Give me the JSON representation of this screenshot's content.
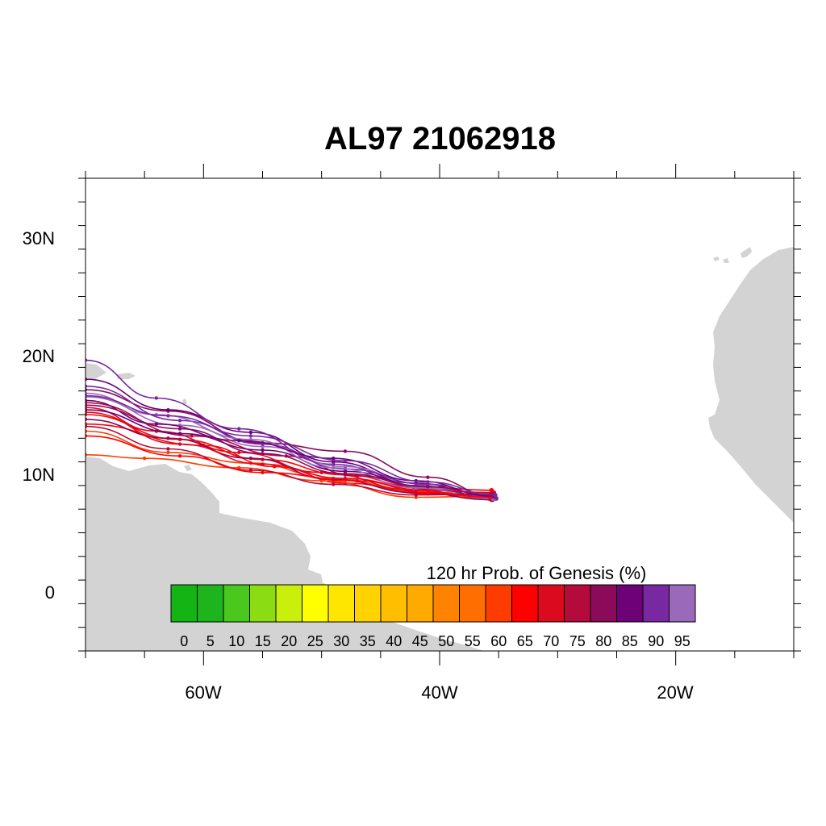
{
  "title": "AL97 21062918",
  "map": {
    "lon_range": [
      -70,
      -10
    ],
    "lat_range": [
      -5,
      35
    ],
    "x_ticks": [
      {
        "value": -60,
        "label": "60W"
      },
      {
        "value": -40,
        "label": "40W"
      },
      {
        "value": -20,
        "label": "20W"
      }
    ],
    "y_ticks": [
      {
        "value": 30,
        "label": "30N"
      },
      {
        "value": 20,
        "label": "20N"
      },
      {
        "value": 10,
        "label": "10N"
      },
      {
        "value": 0,
        "label": "0"
      }
    ],
    "land_color": "#d3d3d3",
    "background": "#ffffff"
  },
  "colorbar": {
    "title": "120 hr Prob. of Genesis (%)",
    "labels": [
      "0",
      "5",
      "10",
      "15",
      "20",
      "25",
      "30",
      "35",
      "40",
      "45",
      "50",
      "55",
      "60",
      "65",
      "70",
      "75",
      "80",
      "85",
      "90",
      "95"
    ],
    "colors": [
      "#15b415",
      "#1eb41e",
      "#4bc81e",
      "#8cdc14",
      "#c8f00a",
      "#ffff00",
      "#ffe600",
      "#ffd200",
      "#ffbe00",
      "#ffaa00",
      "#ff8200",
      "#ff6e00",
      "#ff3c00",
      "#ff0000",
      "#dc0a1e",
      "#b40a3c",
      "#8c0a5a",
      "#6e0078",
      "#7828a0",
      "#9b69b9"
    ]
  },
  "tracks": {
    "colors": [
      "#ff0000",
      "#ff3c00",
      "#dc0a1e",
      "#b40a3c",
      "#8c0a5a",
      "#6e0078",
      "#7828a0",
      "#9b69b9"
    ],
    "members": [
      {
        "color_index": 0,
        "points": [
          [
            -35.6,
            8.6
          ],
          [
            -42,
            8.9
          ],
          [
            -48,
            9.9
          ],
          [
            -55,
            11.2
          ],
          [
            -62,
            12.9
          ],
          [
            -70,
            15.0
          ]
        ]
      },
      {
        "color_index": 1,
        "points": [
          [
            -35.6,
            8.2
          ],
          [
            -42,
            8.5
          ],
          [
            -49,
            9.6
          ],
          [
            -56,
            10.9
          ],
          [
            -63,
            11.8
          ],
          [
            -70,
            13.6
          ]
        ]
      },
      {
        "color_index": 0,
        "points": [
          [
            -35.8,
            7.9
          ],
          [
            -41,
            8.3
          ],
          [
            -48,
            9.2
          ],
          [
            -54,
            10.6
          ],
          [
            -60,
            12.4
          ],
          [
            -70,
            14.2
          ]
        ]
      },
      {
        "color_index": 2,
        "points": [
          [
            -35.5,
            7.8
          ],
          [
            -42,
            8.6
          ],
          [
            -50,
            10.1
          ],
          [
            -57,
            11.8
          ],
          [
            -64,
            13.6
          ],
          [
            -70,
            15.6
          ]
        ]
      },
      {
        "color_index": 3,
        "points": [
          [
            -35.4,
            8.0
          ],
          [
            -41,
            8.7
          ],
          [
            -47,
            9.8
          ],
          [
            -53,
            11.5
          ],
          [
            -61,
            13.2
          ],
          [
            -70,
            16.0
          ]
        ]
      },
      {
        "color_index": 4,
        "points": [
          [
            -35.3,
            8.1
          ],
          [
            -41,
            9.7
          ],
          [
            -48,
            11.9
          ],
          [
            -55,
            12.6
          ],
          [
            -63,
            15.3
          ],
          [
            -70,
            17.1
          ]
        ]
      },
      {
        "color_index": 5,
        "points": [
          [
            -35.6,
            8.0
          ],
          [
            -42,
            9.2
          ],
          [
            -49,
            11.0
          ],
          [
            -56,
            13.5
          ],
          [
            -63,
            15.4
          ],
          [
            -70,
            18.0
          ]
        ]
      },
      {
        "color_index": 6,
        "points": [
          [
            -35.2,
            7.9
          ],
          [
            -42,
            9.0
          ],
          [
            -49,
            10.8
          ],
          [
            -57,
            13.8
          ],
          [
            -64,
            16.4
          ],
          [
            -70,
            19.6
          ]
        ]
      },
      {
        "color_index": 7,
        "points": [
          [
            -35.4,
            8.3
          ],
          [
            -41,
            8.8
          ],
          [
            -48,
            10.6
          ],
          [
            -55,
            12.3
          ],
          [
            -62,
            14.1
          ],
          [
            -70,
            16.5
          ]
        ]
      },
      {
        "color_index": 1,
        "points": [
          [
            -35.7,
            8.1
          ],
          [
            -42,
            8.0
          ],
          [
            -50,
            9.4
          ],
          [
            -57,
            10.5
          ],
          [
            -65,
            11.3
          ],
          [
            -70,
            11.6
          ]
        ]
      },
      {
        "color_index": 5,
        "points": [
          [
            -35.5,
            8.2
          ],
          [
            -41,
            8.9
          ],
          [
            -48,
            10.2
          ],
          [
            -55,
            12.0
          ],
          [
            -62,
            13.4
          ],
          [
            -70,
            15.4
          ]
        ]
      },
      {
        "color_index": 4,
        "points": [
          [
            -35.6,
            7.8
          ],
          [
            -42,
            8.4
          ],
          [
            -49,
            9.5
          ],
          [
            -56,
            11.3
          ],
          [
            -63,
            13.0
          ],
          [
            -70,
            14.6
          ]
        ]
      },
      {
        "color_index": 2,
        "points": [
          [
            -35.4,
            8.4
          ],
          [
            -41,
            8.6
          ],
          [
            -48,
            9.6
          ],
          [
            -55,
            10.8
          ],
          [
            -62,
            12.5
          ],
          [
            -70,
            15.2
          ]
        ]
      },
      {
        "color_index": 6,
        "points": [
          [
            -35.3,
            8.0
          ],
          [
            -41,
            9.1
          ],
          [
            -48,
            10.4
          ],
          [
            -55,
            12.5
          ],
          [
            -62,
            14.5
          ],
          [
            -70,
            17.4
          ]
        ]
      },
      {
        "color_index": 7,
        "points": [
          [
            -35.5,
            7.9
          ],
          [
            -42,
            8.8
          ],
          [
            -49,
            10.5
          ],
          [
            -56,
            12.9
          ],
          [
            -64,
            15.0
          ],
          [
            -70,
            16.8
          ]
        ]
      },
      {
        "color_index": 3,
        "points": [
          [
            -35.6,
            8.3
          ],
          [
            -42,
            8.2
          ],
          [
            -49,
            9.1
          ],
          [
            -56,
            10.3
          ],
          [
            -63,
            12.1
          ],
          [
            -70,
            14.0
          ]
        ]
      },
      {
        "color_index": 0,
        "points": [
          [
            -35.7,
            8.0
          ],
          [
            -41,
            8.4
          ],
          [
            -47,
            9.4
          ],
          [
            -55,
            10.1
          ],
          [
            -62,
            11.5
          ],
          [
            -70,
            13.2
          ]
        ]
      },
      {
        "color_index": 5,
        "points": [
          [
            -35.4,
            8.1
          ],
          [
            -42,
            9.4
          ],
          [
            -49,
            11.3
          ],
          [
            -57,
            12.8
          ],
          [
            -64,
            14.2
          ],
          [
            -70,
            16.2
          ]
        ]
      },
      {
        "color_index": 4,
        "points": [
          [
            -35.5,
            8.2
          ],
          [
            -41,
            8.9
          ],
          [
            -48,
            10.0
          ],
          [
            -55,
            11.7
          ],
          [
            -62,
            13.8
          ],
          [
            -70,
            15.8
          ]
        ]
      },
      {
        "color_index": 6,
        "points": [
          [
            -35.3,
            8.2
          ],
          [
            -41,
            9.3
          ],
          [
            -48,
            11.1
          ],
          [
            -56,
            13.2
          ],
          [
            -63,
            14.9
          ],
          [
            -70,
            16.6
          ]
        ]
      }
    ]
  }
}
